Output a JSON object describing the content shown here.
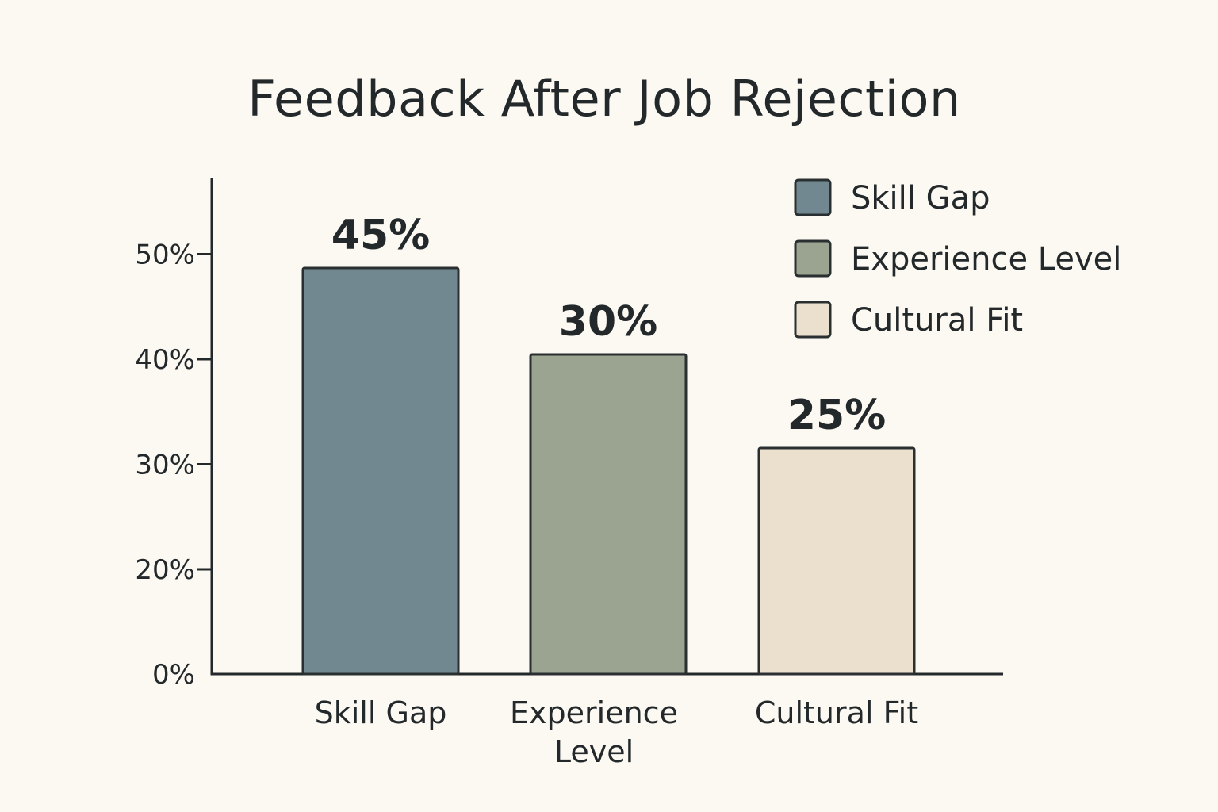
{
  "chart_data": {
    "type": "bar",
    "title": "Feedback After Job Rejection",
    "xlabel": "",
    "ylabel": "",
    "categories": [
      "Skill Gap",
      "Experience Level",
      "Cultural Fit"
    ],
    "category_lines": [
      [
        "Skill Gap"
      ],
      [
        "Experience",
        "Level"
      ],
      [
        "Cultural Fit"
      ]
    ],
    "values": [
      45,
      30,
      25
    ],
    "data_labels": [
      "45%",
      "30%",
      "25%"
    ],
    "y_ticks": [
      0,
      20,
      30,
      40,
      50
    ],
    "y_tick_labels": [
      "0%",
      "20%",
      "30%",
      "40%",
      "50%"
    ],
    "ylim": [
      0,
      55
    ],
    "grid": false,
    "legend": {
      "placement": "top-right",
      "entries": [
        "Skill Gap",
        "Experience Level",
        "Cultural Fit"
      ]
    },
    "colors": [
      "#728891",
      "#9aa490",
      "#ebe0ce"
    ],
    "bar_border_color": "#2a2f31"
  }
}
